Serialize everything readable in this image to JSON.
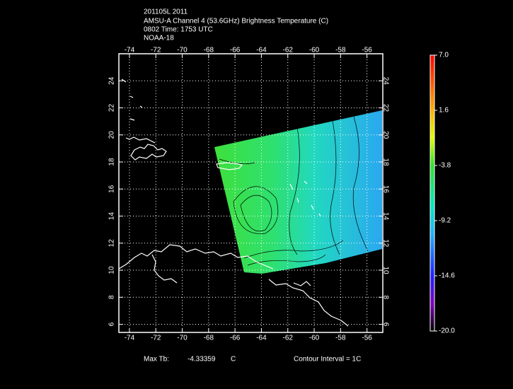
{
  "header": {
    "lines": [
      "201105L 2011",
      "AMSU-A Channel 4 (53.6GHz) Brightness Temperature (C)",
      "0802 Time: 1753 UTC",
      "NOAA-18"
    ]
  },
  "map": {
    "xlim": [
      -74.8,
      -54.8
    ],
    "ylim": [
      5.4,
      26
    ],
    "xticks": [
      -74,
      -72,
      -70,
      -68,
      -66,
      -64,
      -62,
      -60,
      -58,
      -56
    ],
    "yticks": [
      6,
      8,
      10,
      12,
      14,
      16,
      18,
      20,
      22,
      24
    ],
    "grid": true
  },
  "colorbar": {
    "lim": [
      -20,
      7
    ],
    "ticks": [
      {
        "value": 7,
        "label": "7.0"
      },
      1.6,
      -3.8,
      -9.2,
      -14.6,
      {
        "value": -20,
        "label": "-20.0"
      }
    ]
  },
  "footer": {
    "max_label": "Max Tb:",
    "max_value": "-4.33359",
    "unit": "C",
    "contour": "Contour Interval = 1C"
  }
}
